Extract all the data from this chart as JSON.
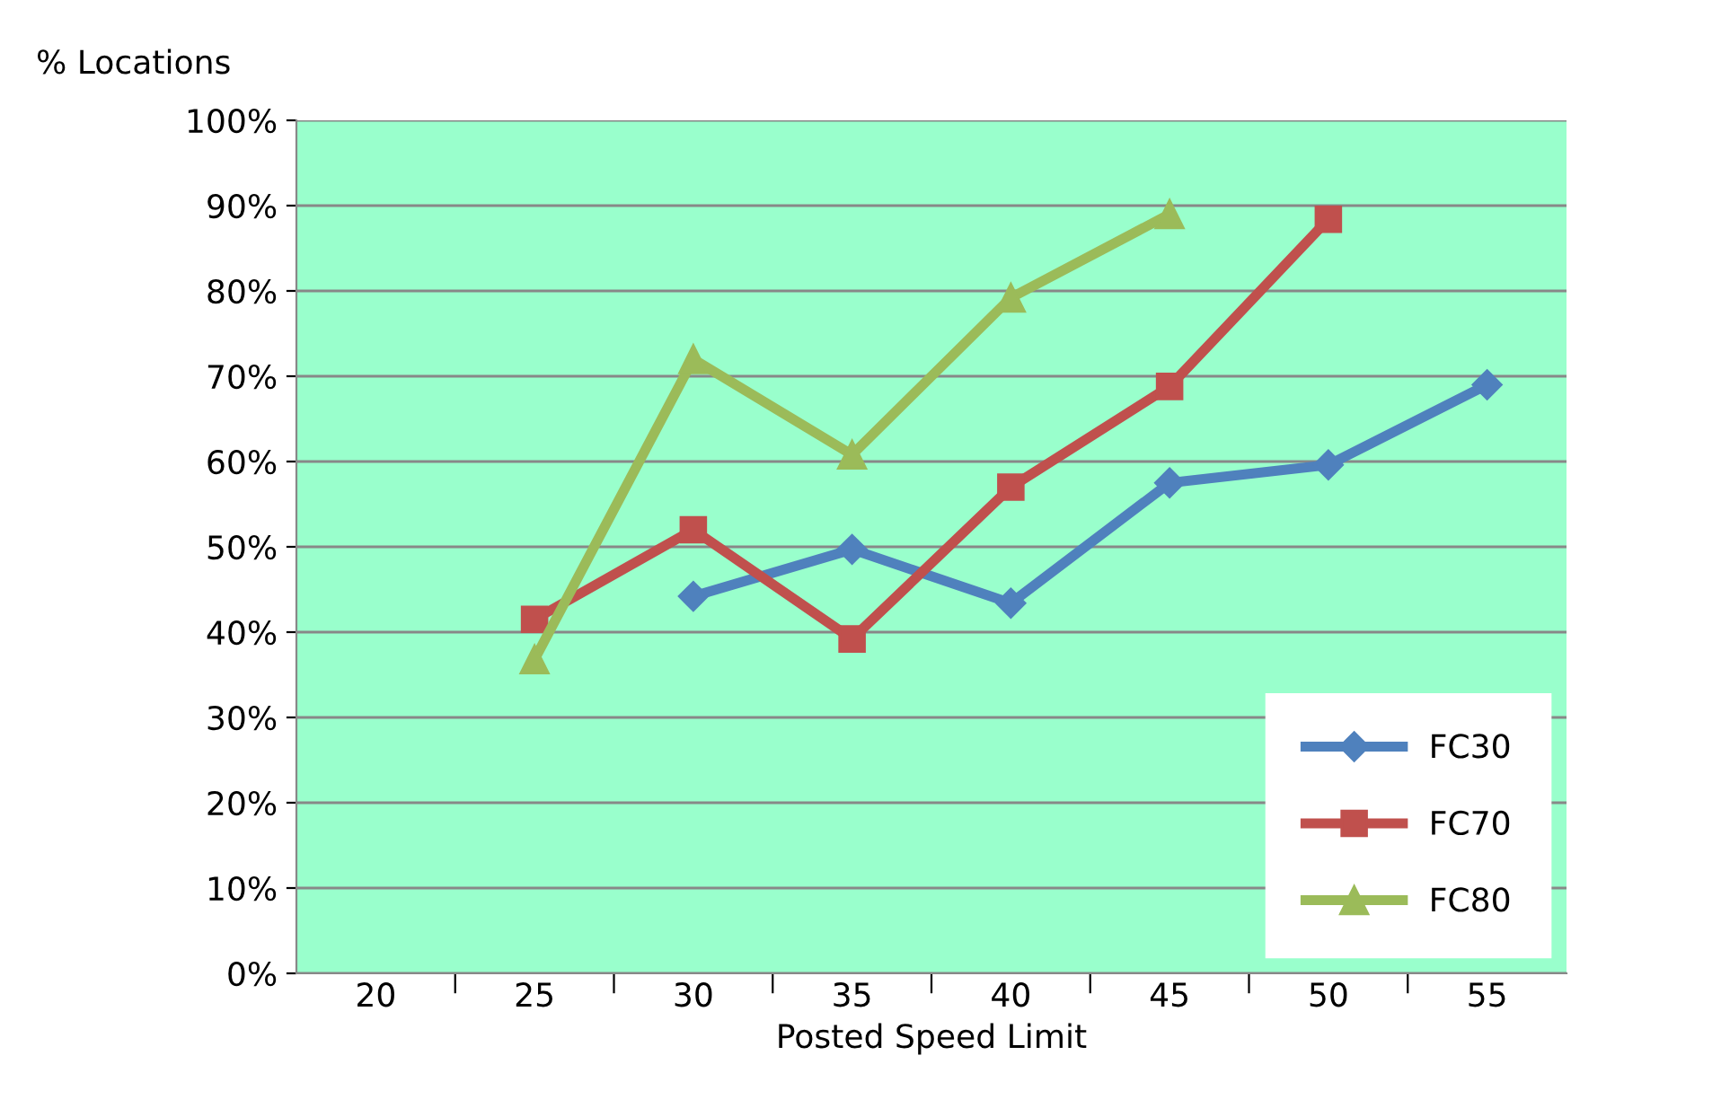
{
  "chart_data": {
    "type": "line",
    "ylabel": "% Locations",
    "xlabel": "Posted Speed Limit",
    "categories": [
      "20",
      "25",
      "30",
      "35",
      "40",
      "45",
      "50",
      "55"
    ],
    "series": [
      {
        "name": "FC30",
        "color": "#4f81bd",
        "marker": "diamond",
        "values": [
          null,
          null,
          44.2,
          49.7,
          43.4,
          57.5,
          59.6,
          69.0
        ]
      },
      {
        "name": "FC70",
        "color": "#c0504d",
        "marker": "square",
        "values": [
          null,
          41.5,
          52.0,
          39.2,
          57.0,
          68.8,
          88.4,
          null
        ]
      },
      {
        "name": "FC80",
        "color": "#9bbb59",
        "marker": "triangle",
        "values": [
          null,
          36.8,
          72.0,
          60.8,
          79.2,
          89.0,
          null,
          null
        ]
      }
    ],
    "ylim": [
      0,
      100
    ],
    "yticks": [
      {
        "value": 0,
        "label": "0%"
      },
      {
        "value": 10,
        "label": "10%"
      },
      {
        "value": 20,
        "label": "20%"
      },
      {
        "value": 30,
        "label": "30%"
      },
      {
        "value": 40,
        "label": "40%"
      },
      {
        "value": 50,
        "label": "50%"
      },
      {
        "value": 60,
        "label": "60%"
      },
      {
        "value": 70,
        "label": "70%"
      },
      {
        "value": 80,
        "label": "80%"
      },
      {
        "value": 90,
        "label": "90%"
      },
      {
        "value": 100,
        "label": "100%"
      }
    ],
    "grid": "y",
    "legend": "bottom right",
    "line_style": "solid"
  }
}
